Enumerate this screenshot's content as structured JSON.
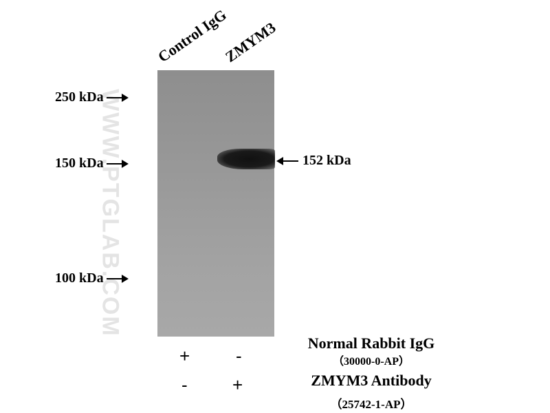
{
  "lanes": [
    {
      "label": "Control IgG"
    },
    {
      "label": "ZMYM3"
    }
  ],
  "markers": [
    {
      "label": "250 kDa"
    },
    {
      "label": "150 kDa"
    },
    {
      "label": "100 kDa"
    }
  ],
  "band": {
    "label": "152 kDa"
  },
  "watermark": "WWW.PTGLAB.COM",
  "conditions": [
    {
      "name": "Normal Rabbit IgG",
      "catalog": "（30000-0-AP）",
      "signs": [
        "+",
        "-"
      ]
    },
    {
      "name": "ZMYM3 Antibody",
      "catalog": "（25742-1-AP）",
      "signs": [
        "-",
        "+"
      ]
    }
  ]
}
